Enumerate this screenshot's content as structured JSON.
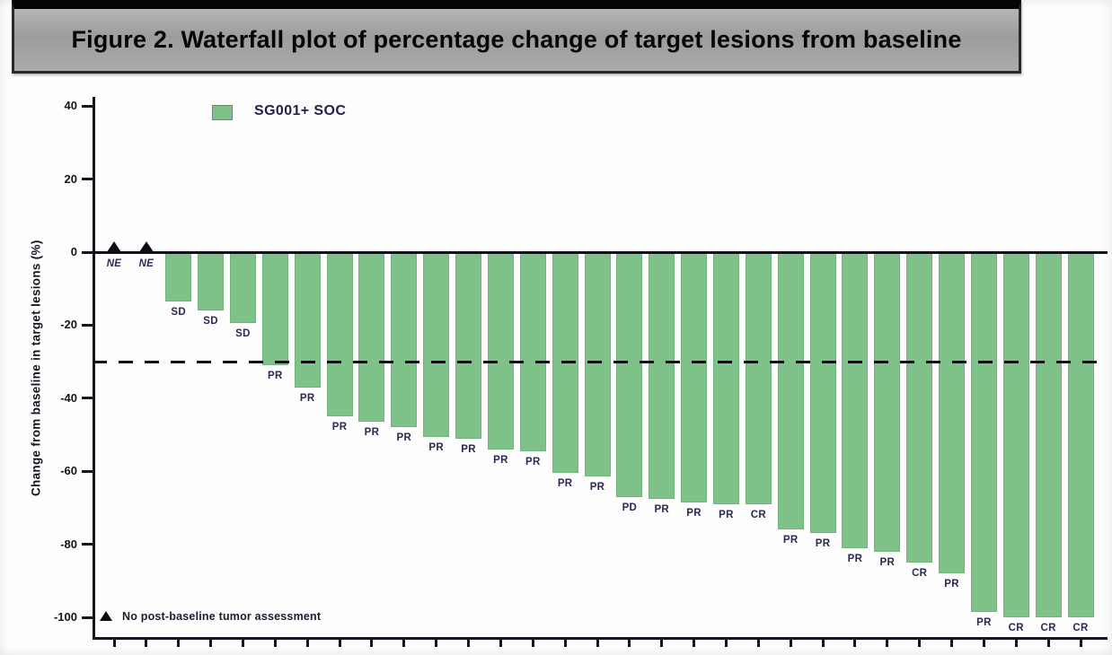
{
  "figure": {
    "title": "Figure 2. Waterfall plot of percentage change of target lesions from baseline"
  },
  "chart_data": {
    "type": "bar",
    "title": "Figure 2. Waterfall plot of percentage change of target lesions from baseline",
    "ylabel": "Change from baseline in target lesions (%)",
    "xlabel": "",
    "ylim": [
      -105,
      45
    ],
    "yticks": [
      40,
      20,
      0,
      -20,
      -40,
      -60,
      -80,
      -100
    ],
    "grid": false,
    "legend_position": "top-left",
    "legend": [
      {
        "label": "SG001+ SOC",
        "color": "#7fc289"
      }
    ],
    "reference_lines": [
      {
        "value": 0,
        "style": "solid"
      },
      {
        "value": -30,
        "style": "dashed"
      }
    ],
    "footnote_marker": "triangle",
    "footnote": "No post-baseline tumor assessment",
    "categories_note": "one x-axis tick per patient, no x tick labels",
    "patients": [
      {
        "response": "NE",
        "value": 0
      },
      {
        "response": "NE",
        "value": 0
      },
      {
        "response": "SD",
        "value": -13.5
      },
      {
        "response": "SD",
        "value": -16
      },
      {
        "response": "SD",
        "value": -19.5
      },
      {
        "response": "PR",
        "value": -31
      },
      {
        "response": "PR",
        "value": -37
      },
      {
        "response": "PR",
        "value": -45
      },
      {
        "response": "PR",
        "value": -46.5
      },
      {
        "response": "PR",
        "value": -48
      },
      {
        "response": "PR",
        "value": -50.5
      },
      {
        "response": "PR",
        "value": -51
      },
      {
        "response": "PR",
        "value": -54
      },
      {
        "response": "PR",
        "value": -54.5
      },
      {
        "response": "PR",
        "value": -60.5
      },
      {
        "response": "PR",
        "value": -61.5
      },
      {
        "response": "PD",
        "value": -67
      },
      {
        "response": "PR",
        "value": -67.5
      },
      {
        "response": "PR",
        "value": -68.5
      },
      {
        "response": "PR",
        "value": -69
      },
      {
        "response": "CR",
        "value": -69
      },
      {
        "response": "PR",
        "value": -76
      },
      {
        "response": "PR",
        "value": -77
      },
      {
        "response": "PR",
        "value": -81
      },
      {
        "response": "PR",
        "value": -82
      },
      {
        "response": "CR",
        "value": -85
      },
      {
        "response": "PR",
        "value": -88
      },
      {
        "response": "PR",
        "value": -98.5
      },
      {
        "response": "CR",
        "value": -100
      },
      {
        "response": "CR",
        "value": -100
      },
      {
        "response": "CR",
        "value": -100
      }
    ]
  },
  "colors": {
    "bar": "#7fc289",
    "bar_label_text": "#2b2a52",
    "axis": "#15151f",
    "title_bar_bg": "#a4a4a4",
    "title_text": "#060606"
  }
}
